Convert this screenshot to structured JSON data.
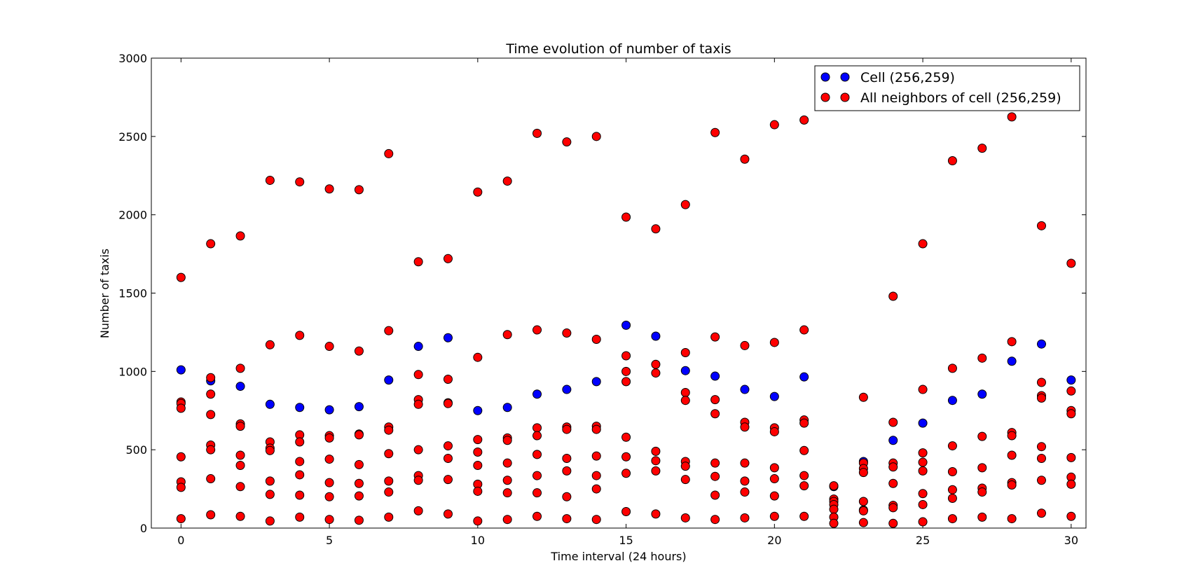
{
  "chart_data": {
    "type": "scatter",
    "title": "Time evolution of number of taxis",
    "xlabel": "Time interval (24 hours)",
    "ylabel": "Number of taxis",
    "xlim": [
      -1,
      30.5
    ],
    "ylim": [
      0,
      3000
    ],
    "xticks": [
      0,
      5,
      10,
      15,
      20,
      25,
      30
    ],
    "yticks": [
      0,
      500,
      1000,
      1500,
      2000,
      2500,
      3000
    ],
    "grid": false,
    "legend_position": "top-right",
    "series": [
      {
        "name": "Cell (256,259)",
        "color": "#0000ff",
        "points": [
          [
            0,
            1010
          ],
          [
            1,
            940
          ],
          [
            2,
            905
          ],
          [
            3,
            790
          ],
          [
            4,
            770
          ],
          [
            5,
            755
          ],
          [
            6,
            775
          ],
          [
            7,
            945
          ],
          [
            8,
            1160
          ],
          [
            9,
            1215
          ],
          [
            10,
            750
          ],
          [
            11,
            770
          ],
          [
            12,
            855
          ],
          [
            13,
            885
          ],
          [
            14,
            935
          ],
          [
            15,
            1295
          ],
          [
            16,
            1225
          ],
          [
            17,
            1005
          ],
          [
            18,
            970
          ],
          [
            19,
            885
          ],
          [
            20,
            840
          ],
          [
            21,
            965
          ],
          [
            22,
            265
          ],
          [
            23,
            425
          ],
          [
            24,
            560
          ],
          [
            25,
            670
          ],
          [
            26,
            815
          ],
          [
            27,
            855
          ],
          [
            28,
            1065
          ],
          [
            29,
            1175
          ],
          [
            30,
            945
          ]
        ]
      },
      {
        "name": "All neighbors of cell (256,259)",
        "color": "#ff0000",
        "points": [
          [
            0,
            1600
          ],
          [
            0,
            805
          ],
          [
            0,
            795
          ],
          [
            0,
            765
          ],
          [
            0,
            455
          ],
          [
            0,
            295
          ],
          [
            0,
            260
          ],
          [
            0,
            60
          ],
          [
            1,
            1815
          ],
          [
            1,
            960
          ],
          [
            1,
            855
          ],
          [
            1,
            725
          ],
          [
            1,
            530
          ],
          [
            1,
            500
          ],
          [
            1,
            315
          ],
          [
            1,
            85
          ],
          [
            2,
            1865
          ],
          [
            2,
            1020
          ],
          [
            2,
            665
          ],
          [
            2,
            650
          ],
          [
            2,
            465
          ],
          [
            2,
            400
          ],
          [
            2,
            265
          ],
          [
            2,
            75
          ],
          [
            3,
            2220
          ],
          [
            3,
            1170
          ],
          [
            3,
            550
          ],
          [
            3,
            510
          ],
          [
            3,
            495
          ],
          [
            3,
            300
          ],
          [
            3,
            215
          ],
          [
            3,
            45
          ],
          [
            4,
            2210
          ],
          [
            4,
            1230
          ],
          [
            4,
            595
          ],
          [
            4,
            550
          ],
          [
            4,
            425
          ],
          [
            4,
            340
          ],
          [
            4,
            210
          ],
          [
            4,
            70
          ],
          [
            5,
            2165
          ],
          [
            5,
            1160
          ],
          [
            5,
            590
          ],
          [
            5,
            575
          ],
          [
            5,
            440
          ],
          [
            5,
            290
          ],
          [
            5,
            200
          ],
          [
            5,
            55
          ],
          [
            6,
            2160
          ],
          [
            6,
            1130
          ],
          [
            6,
            600
          ],
          [
            6,
            595
          ],
          [
            6,
            405
          ],
          [
            6,
            285
          ],
          [
            6,
            205
          ],
          [
            6,
            50
          ],
          [
            7,
            2390
          ],
          [
            7,
            1260
          ],
          [
            7,
            645
          ],
          [
            7,
            625
          ],
          [
            7,
            475
          ],
          [
            7,
            300
          ],
          [
            7,
            230
          ],
          [
            7,
            70
          ],
          [
            8,
            1700
          ],
          [
            8,
            980
          ],
          [
            8,
            820
          ],
          [
            8,
            790
          ],
          [
            8,
            500
          ],
          [
            8,
            335
          ],
          [
            8,
            305
          ],
          [
            8,
            110
          ],
          [
            9,
            1720
          ],
          [
            9,
            950
          ],
          [
            9,
            800
          ],
          [
            9,
            795
          ],
          [
            9,
            525
          ],
          [
            9,
            445
          ],
          [
            9,
            310
          ],
          [
            9,
            90
          ],
          [
            10,
            2145
          ],
          [
            10,
            1090
          ],
          [
            10,
            565
          ],
          [
            10,
            485
          ],
          [
            10,
            400
          ],
          [
            10,
            280
          ],
          [
            10,
            235
          ],
          [
            10,
            45
          ],
          [
            11,
            2215
          ],
          [
            11,
            1235
          ],
          [
            11,
            575
          ],
          [
            11,
            560
          ],
          [
            11,
            415
          ],
          [
            11,
            305
          ],
          [
            11,
            225
          ],
          [
            11,
            55
          ],
          [
            12,
            2520
          ],
          [
            12,
            1265
          ],
          [
            12,
            640
          ],
          [
            12,
            590
          ],
          [
            12,
            470
          ],
          [
            12,
            335
          ],
          [
            12,
            225
          ],
          [
            12,
            75
          ],
          [
            13,
            2465
          ],
          [
            13,
            1245
          ],
          [
            13,
            645
          ],
          [
            13,
            630
          ],
          [
            13,
            445
          ],
          [
            13,
            365
          ],
          [
            13,
            200
          ],
          [
            13,
            60
          ],
          [
            14,
            2500
          ],
          [
            14,
            1205
          ],
          [
            14,
            650
          ],
          [
            14,
            630
          ],
          [
            14,
            460
          ],
          [
            14,
            335
          ],
          [
            14,
            250
          ],
          [
            14,
            55
          ],
          [
            15,
            1985
          ],
          [
            15,
            1100
          ],
          [
            15,
            1000
          ],
          [
            15,
            935
          ],
          [
            15,
            580
          ],
          [
            15,
            455
          ],
          [
            15,
            350
          ],
          [
            15,
            105
          ],
          [
            16,
            1910
          ],
          [
            16,
            1045
          ],
          [
            16,
            990
          ],
          [
            16,
            490
          ],
          [
            16,
            430
          ],
          [
            16,
            365
          ],
          [
            16,
            90
          ],
          [
            17,
            2065
          ],
          [
            17,
            1120
          ],
          [
            17,
            865
          ],
          [
            17,
            815
          ],
          [
            17,
            425
          ],
          [
            17,
            395
          ],
          [
            17,
            310
          ],
          [
            17,
            65
          ],
          [
            18,
            2525
          ],
          [
            18,
            1220
          ],
          [
            18,
            820
          ],
          [
            18,
            730
          ],
          [
            18,
            415
          ],
          [
            18,
            330
          ],
          [
            18,
            210
          ],
          [
            18,
            55
          ],
          [
            19,
            2355
          ],
          [
            19,
            1165
          ],
          [
            19,
            675
          ],
          [
            19,
            645
          ],
          [
            19,
            415
          ],
          [
            19,
            300
          ],
          [
            19,
            230
          ],
          [
            19,
            65
          ],
          [
            20,
            2575
          ],
          [
            20,
            1185
          ],
          [
            20,
            640
          ],
          [
            20,
            615
          ],
          [
            20,
            385
          ],
          [
            20,
            315
          ],
          [
            20,
            205
          ],
          [
            20,
            75
          ],
          [
            21,
            2605
          ],
          [
            21,
            1265
          ],
          [
            21,
            690
          ],
          [
            21,
            670
          ],
          [
            21,
            495
          ],
          [
            21,
            335
          ],
          [
            21,
            270
          ],
          [
            21,
            75
          ],
          [
            22,
            270
          ],
          [
            22,
            185
          ],
          [
            22,
            170
          ],
          [
            22,
            150
          ],
          [
            22,
            120
          ],
          [
            22,
            70
          ],
          [
            22,
            30
          ],
          [
            23,
            835
          ],
          [
            23,
            415
          ],
          [
            23,
            380
          ],
          [
            23,
            355
          ],
          [
            23,
            170
          ],
          [
            23,
            115
          ],
          [
            23,
            110
          ],
          [
            23,
            35
          ],
          [
            24,
            1480
          ],
          [
            24,
            675
          ],
          [
            24,
            415
          ],
          [
            24,
            390
          ],
          [
            24,
            285
          ],
          [
            24,
            145
          ],
          [
            24,
            130
          ],
          [
            24,
            30
          ],
          [
            25,
            1815
          ],
          [
            25,
            885
          ],
          [
            25,
            480
          ],
          [
            25,
            420
          ],
          [
            25,
            365
          ],
          [
            25,
            220
          ],
          [
            25,
            150
          ],
          [
            25,
            40
          ],
          [
            26,
            2345
          ],
          [
            26,
            1020
          ],
          [
            26,
            525
          ],
          [
            26,
            360
          ],
          [
            26,
            245
          ],
          [
            26,
            190
          ],
          [
            26,
            60
          ],
          [
            27,
            2425
          ],
          [
            27,
            1085
          ],
          [
            27,
            585
          ],
          [
            27,
            385
          ],
          [
            27,
            255
          ],
          [
            27,
            230
          ],
          [
            27,
            70
          ],
          [
            28,
            2625
          ],
          [
            28,
            1190
          ],
          [
            28,
            610
          ],
          [
            28,
            590
          ],
          [
            28,
            465
          ],
          [
            28,
            290
          ],
          [
            28,
            275
          ],
          [
            28,
            60
          ],
          [
            29,
            1930
          ],
          [
            29,
            930
          ],
          [
            29,
            845
          ],
          [
            29,
            830
          ],
          [
            29,
            520
          ],
          [
            29,
            445
          ],
          [
            29,
            305
          ],
          [
            29,
            95
          ],
          [
            30,
            1690
          ],
          [
            30,
            875
          ],
          [
            30,
            750
          ],
          [
            30,
            730
          ],
          [
            30,
            450
          ],
          [
            30,
            325
          ],
          [
            30,
            280
          ],
          [
            30,
            75
          ]
        ]
      }
    ]
  }
}
